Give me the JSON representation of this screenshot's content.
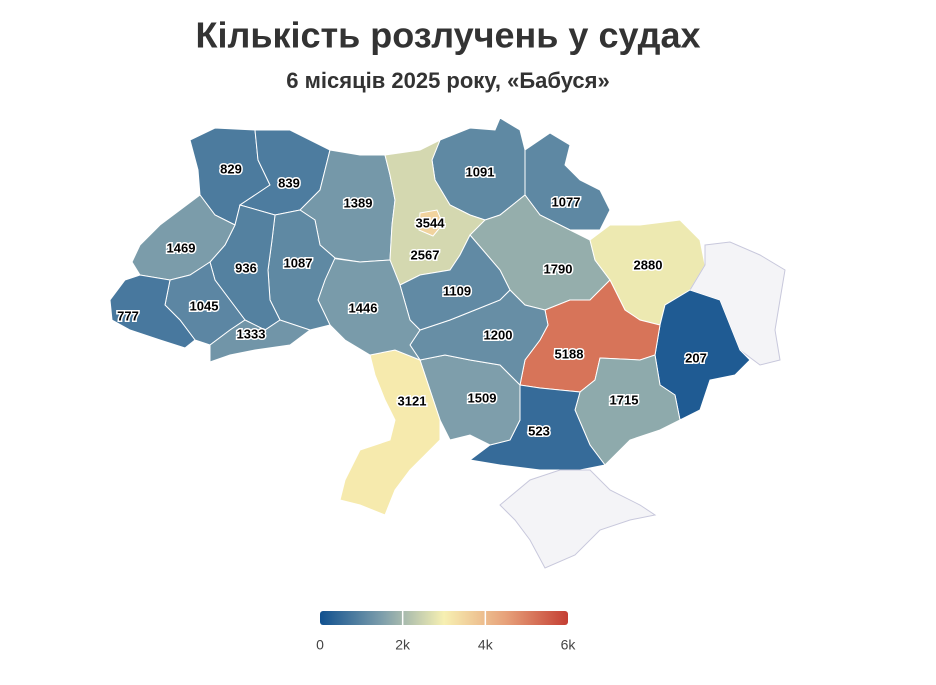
{
  "chart_data": {
    "type": "choropleth",
    "title": "Кількість розлучень у судах",
    "subtitle": "6 місяців 2025 року, «Бабуся»",
    "values": [
      829,
      839,
      1389,
      1091,
      1077,
      2567,
      3544,
      1790,
      2880,
      null,
      207,
      5188,
      1715,
      523,
      null,
      1509,
      3121,
      1200,
      1109,
      1446,
      1087,
      936,
      1469,
      1045,
      777,
      1333
    ],
    "colorlim": [
      0,
      6000
    ],
    "colorticks": [
      0,
      {
        "value": 2000,
        "label": "2k"
      },
      {
        "value": 4000,
        "label": "4k"
      },
      {
        "value": 6000,
        "label": "6k"
      }
    ],
    "colorscale": [
      "#10508f",
      "#7d9eab",
      "#f7f0b2",
      "#e7a17a",
      "#c43e33"
    ],
    "missing_color": "#f4f4f7"
  }
}
